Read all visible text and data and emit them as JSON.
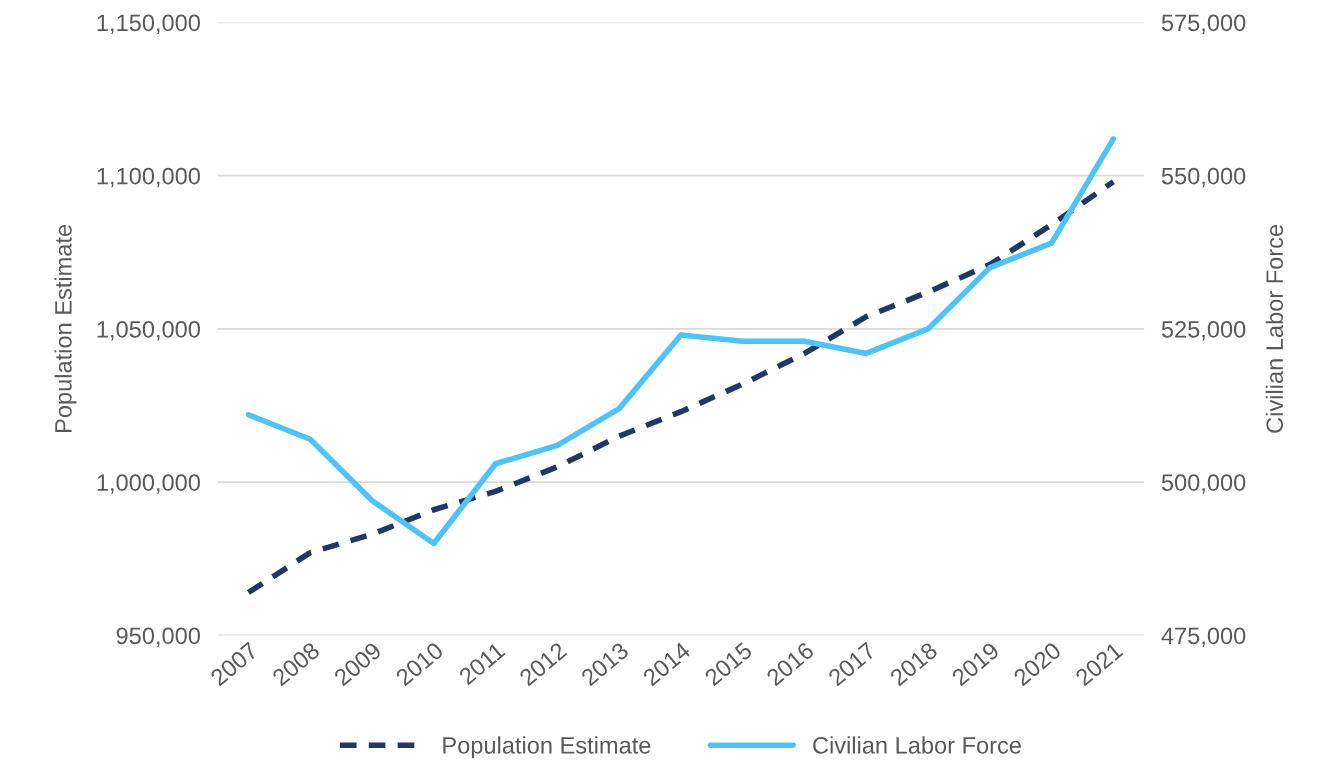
{
  "chart_data": {
    "type": "line",
    "categories": [
      "2007",
      "2008",
      "2009",
      "2010",
      "2011",
      "2012",
      "2013",
      "2014",
      "2015",
      "2016",
      "2017",
      "2018",
      "2019",
      "2020",
      "2021"
    ],
    "series": [
      {
        "name": "Population Estimate",
        "color": "#1f3864",
        "line_style": "dashed",
        "values": [
          964000,
          977000,
          983000,
          991000,
          997000,
          1005000,
          1015000,
          1023000,
          1032000,
          1042000,
          1054000,
          1062000,
          1071000,
          1084000,
          1098000
        ]
      },
      {
        "name": "Civilian Labor Force",
        "color": "#4fc3f7",
        "line_style": "solid",
        "axis": "y2",
        "values": [
          511000,
          507000,
          497000,
          490000,
          503000,
          506000,
          512000,
          524000,
          523000,
          523000,
          521000,
          525000,
          535000,
          539000,
          556000
        ]
      }
    ],
    "ylabel": "Population Estimate",
    "y2label": "Civilian Labor Force",
    "ylim": [
      950000,
      1150000
    ],
    "yticks": [
      {
        "value": 950000,
        "label": "950,000"
      },
      {
        "value": 1000000,
        "label": "1,000,000"
      },
      {
        "value": 1050000,
        "label": "1,050,000"
      },
      {
        "value": 1100000,
        "label": "1,100,000"
      },
      {
        "value": 1150000,
        "label": "1,150,000"
      }
    ],
    "y2lim": [
      475000,
      575000
    ],
    "y2ticks": [
      {
        "value": 475000,
        "label": "475,000"
      },
      {
        "value": 500000,
        "label": "500,000"
      },
      {
        "value": 525000,
        "label": "525,000"
      },
      {
        "value": 550000,
        "label": "550,000"
      },
      {
        "value": 575000,
        "label": "575,000"
      }
    ],
    "grid": "y",
    "legend": "bottom"
  }
}
